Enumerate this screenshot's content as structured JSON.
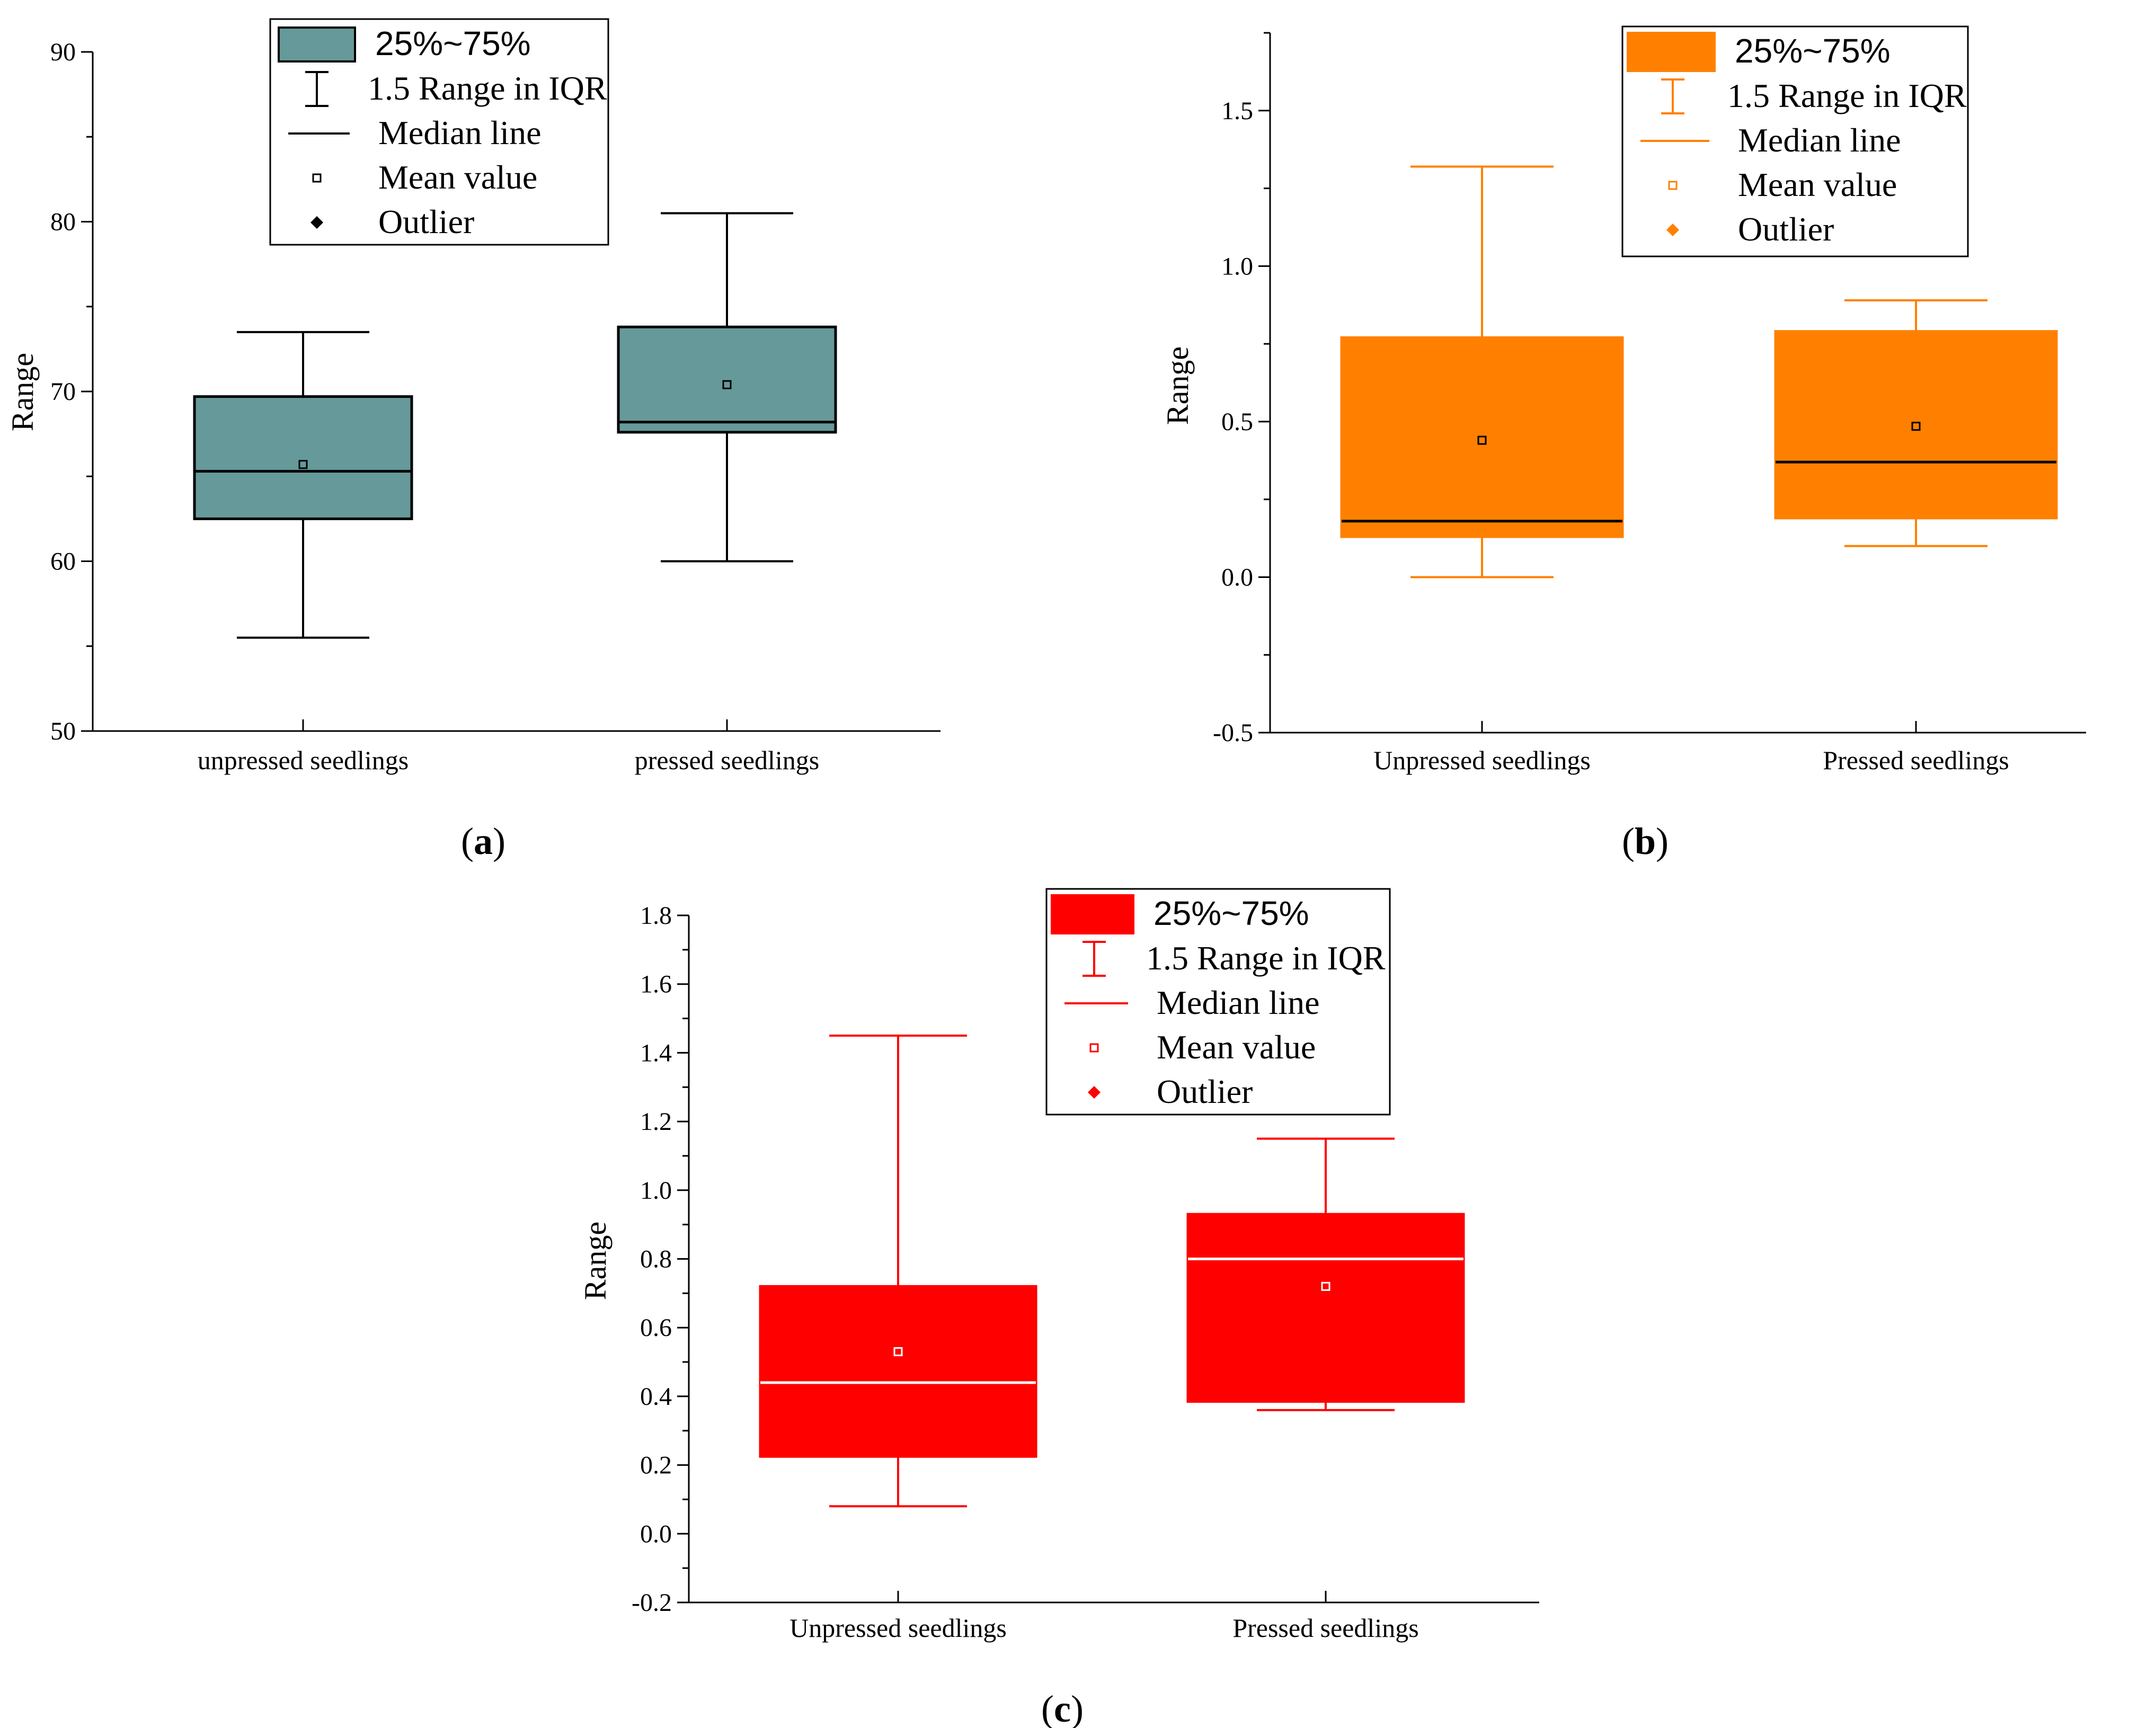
{
  "figure": {
    "panels": [
      "a",
      "b",
      "c"
    ]
  },
  "legend_labels": {
    "box": "25%~75%",
    "whisker": "1.5 Range in IQR",
    "median": "Median line",
    "mean": "Mean value",
    "outlier": "Outlier"
  },
  "chart_data": [
    {
      "id": "a",
      "type": "box",
      "caption": "a",
      "title": "",
      "xlabel": "",
      "ylabel": "Range",
      "ylim": [
        50,
        90
      ],
      "yticks": [
        "50",
        "60",
        "70",
        "80",
        "90"
      ],
      "ytick_values": [
        50,
        60,
        70,
        80,
        90
      ],
      "minor_step": 5,
      "categories": [
        "unpressed seedlings",
        "pressed seedlings"
      ],
      "boxes": [
        {
          "whisker_low": 55.5,
          "q1": 62.5,
          "median": 65.3,
          "q3": 69.7,
          "whisker_high": 73.5,
          "mean": 65.7
        },
        {
          "whisker_low": 60.0,
          "q1": 67.6,
          "median": 68.2,
          "q3": 73.8,
          "whisker_high": 80.5,
          "mean": 70.4
        }
      ],
      "colors": {
        "fill": "#669999",
        "line": "#000000",
        "median": "#000000",
        "legend": "#000000"
      },
      "legend_position": "top-center",
      "grid": false
    },
    {
      "id": "b",
      "type": "box",
      "caption": "b",
      "title": "",
      "xlabel": "",
      "ylabel": "Range",
      "ylim": [
        -0.5,
        1.75
      ],
      "yticks": [
        "-0.5",
        "0.0",
        "0.5",
        "1.0",
        "1.5"
      ],
      "ytick_values": [
        -0.5,
        0.0,
        0.5,
        1.0,
        1.5
      ],
      "minor_step": 0.25,
      "categories": [
        "Unpressed seedlings",
        "Pressed seedlings"
      ],
      "boxes": [
        {
          "whisker_low": 0.0,
          "q1": 0.13,
          "median": 0.18,
          "q3": 0.77,
          "whisker_high": 1.32,
          "mean": 0.44
        },
        {
          "whisker_low": 0.1,
          "q1": 0.19,
          "median": 0.37,
          "q3": 0.79,
          "whisker_high": 0.89,
          "mean": 0.485
        }
      ],
      "colors": {
        "fill": "#ff8000",
        "line": "#ff8000",
        "median": "#000000",
        "legend": "#ff8000"
      },
      "legend_position": "top-right",
      "grid": false
    },
    {
      "id": "c",
      "type": "box",
      "caption": "c",
      "title": "",
      "xlabel": "",
      "ylabel": "Range",
      "ylim": [
        -0.2,
        1.8
      ],
      "yticks": [
        "-0.2",
        "0.0",
        "0.2",
        "0.4",
        "0.6",
        "0.8",
        "1.0",
        "1.2",
        "1.4",
        "1.6",
        "1.8"
      ],
      "ytick_values": [
        -0.2,
        0.0,
        0.2,
        0.4,
        0.6,
        0.8,
        1.0,
        1.2,
        1.4,
        1.6,
        1.8
      ],
      "minor_step": 0.1,
      "categories": [
        "Unpressed seedlings",
        "Pressed seedlings"
      ],
      "boxes": [
        {
          "whisker_low": 0.08,
          "q1": 0.225,
          "median": 0.44,
          "q3": 0.72,
          "whisker_high": 1.45,
          "mean": 0.53
        },
        {
          "whisker_low": 0.36,
          "q1": 0.385,
          "median": 0.8,
          "q3": 0.93,
          "whisker_high": 1.15,
          "mean": 0.72
        }
      ],
      "colors": {
        "fill": "#ff0000",
        "line": "#ff0000",
        "median": "#ffffff",
        "legend": "#ff0000"
      },
      "legend_position": "top-right",
      "grid": false
    }
  ]
}
